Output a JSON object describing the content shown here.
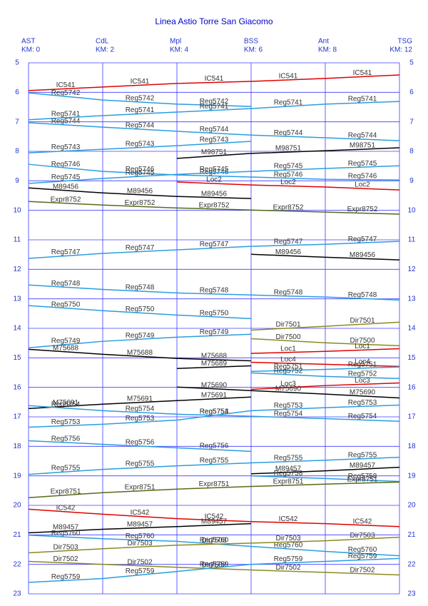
{
  "chart_data": {
    "type": "line",
    "title": "Linea Astio Torre San Giacomo",
    "categories": [
      "AST",
      "CdL",
      "Mpl",
      "BSS",
      "Ant",
      "TSG"
    ],
    "category_sublabels": [
      "KM: 0",
      "KM: 2",
      "KM: 4",
      "KM: 6",
      "KM: 8",
      "KM: 12"
    ],
    "ylim": [
      5,
      23
    ],
    "yticks": [
      5,
      6,
      7,
      8,
      9,
      10,
      11,
      12,
      13,
      14,
      15,
      16,
      17,
      18,
      19,
      20,
      21,
      22,
      23
    ],
    "y_inverted": true,
    "grid": true,
    "grid_color": "#3b3bff",
    "series": [
      {
        "name": "IC541",
        "color": "#e00000",
        "values": [
          5.94,
          5.82,
          5.7,
          5.63,
          5.53,
          5.41
        ]
      },
      {
        "name": "Reg5742",
        "color": "#2a9de0",
        "values": [
          6.02,
          6.26,
          6.4,
          6.48,
          null,
          null
        ]
      },
      {
        "name": "Reg5741",
        "color": "#2a9de0",
        "values": [
          6.93,
          6.79,
          6.67,
          6.55,
          6.4,
          6.31
        ]
      },
      {
        "name": "Reg5744",
        "color": "#2a9de0",
        "values": [
          7.03,
          7.18,
          7.32,
          7.45,
          7.54,
          7.64
        ]
      },
      {
        "name": "Reg5743",
        "color": "#2a9de0",
        "values": [
          8.05,
          7.93,
          7.81,
          7.66,
          null,
          null
        ]
      },
      {
        "name": "M98751",
        "color": "#000000",
        "values": [
          null,
          null,
          8.24,
          8.07,
          7.98,
          7.88
        ]
      },
      {
        "name": "Reg5746",
        "color": "#2a9de0",
        "values": [
          8.44,
          8.68,
          8.8,
          8.87,
          8.95,
          8.97
        ]
      },
      {
        "name": "Reg5745",
        "color": "#2a9de0",
        "values": [
          9.09,
          8.92,
          8.78,
          8.68,
          8.58,
          8.49
        ]
      },
      {
        "name": "Loc2",
        "color": "#e00000",
        "values": [
          null,
          null,
          9.04,
          9.14,
          9.21,
          9.31
        ]
      },
      {
        "name": "M89456",
        "color": "#000000",
        "values": [
          9.24,
          9.41,
          9.53,
          9.6,
          null,
          null
        ]
      },
      {
        "name": "Expr8752",
        "color": "#556b1a",
        "values": [
          9.7,
          9.82,
          9.92,
          9.99,
          10.06,
          10.13
        ]
      },
      {
        "name": "Reg5747",
        "color": "#2a9de0",
        "values": [
          11.63,
          11.46,
          11.34,
          11.22,
          11.15,
          11.05
        ]
      },
      {
        "name": "M89456",
        "color": "#000000",
        "values": [
          null,
          null,
          null,
          11.49,
          11.59,
          11.68
        ]
      },
      {
        "name": "Reg5748",
        "color": "#2a9de0",
        "values": [
          12.53,
          12.68,
          12.8,
          12.87,
          12.94,
          13.04
        ]
      },
      {
        "name": "Reg5750",
        "color": "#2a9de0",
        "values": [
          13.23,
          13.4,
          13.55,
          13.67,
          null,
          null
        ]
      },
      {
        "name": "Dir7501",
        "color": "#8a8a20",
        "values": [
          null,
          null,
          null,
          14.06,
          13.93,
          13.79
        ]
      },
      {
        "name": "Reg5749",
        "color": "#2a9de0",
        "values": [
          14.66,
          14.44,
          14.3,
          14.2,
          null,
          null
        ]
      },
      {
        "name": "Dir7500",
        "color": "#8a8a20",
        "values": [
          null,
          null,
          null,
          14.35,
          14.49,
          14.59
        ]
      },
      {
        "name": "M75688",
        "color": "#000000",
        "values": [
          14.71,
          14.88,
          15.02,
          15.1,
          null,
          null
        ]
      },
      {
        "name": "Loc1",
        "color": "#e00000",
        "values": [
          null,
          null,
          null,
          14.85,
          14.78,
          14.69
        ]
      },
      {
        "name": "M75689",
        "color": "#000000",
        "values": [
          null,
          null,
          15.36,
          15.27,
          null,
          null
        ]
      },
      {
        "name": "Loc4",
        "color": "#e00000",
        "values": [
          null,
          null,
          null,
          15.15,
          15.22,
          15.29
        ]
      },
      {
        "name": "Reg5751",
        "color": "#2a9de0",
        "values": [
          null,
          null,
          null,
          15.46,
          15.39,
          15.31
        ]
      },
      {
        "name": "Reg5752",
        "color": "#2a9de0",
        "values": [
          null,
          null,
          null,
          15.51,
          15.63,
          15.7
        ]
      },
      {
        "name": "Loc3",
        "color": "#e00000",
        "values": [
          null,
          null,
          null,
          16.07,
          15.94,
          15.85
        ]
      },
      {
        "name": "M75690",
        "color": "#000000",
        "values": [
          null,
          null,
          15.99,
          16.11,
          16.23,
          16.36
        ]
      },
      {
        "name": "M75691",
        "color": "#000000",
        "values": [
          16.72,
          16.57,
          16.45,
          16.33,
          null,
          null
        ]
      },
      {
        "name": "Reg5754",
        "color": "#2a9de0",
        "values": [
          16.62,
          16.79,
          16.91,
          16.98,
          17.06,
          17.15
        ]
      },
      {
        "name": "Reg5753",
        "color": "#2a9de0",
        "values": [
          17.35,
          17.25,
          17.11,
          16.79,
          16.69,
          16.6
        ]
      },
      {
        "name": "Reg5756",
        "color": "#2a9de0",
        "values": [
          17.81,
          17.93,
          18.05,
          18.17,
          null,
          null
        ]
      },
      {
        "name": "Reg5755",
        "color": "#2a9de0",
        "values": [
          18.95,
          18.78,
          18.66,
          18.56,
          18.47,
          18.37
        ]
      },
      {
        "name": "M89457",
        "color": "#000000",
        "values": [
          null,
          null,
          null,
          18.93,
          18.83,
          18.71
        ]
      },
      {
        "name": "Reg5758",
        "color": "#2a9de0",
        "values": [
          null,
          null,
          null,
          19.0,
          19.09,
          19.19
        ]
      },
      {
        "name": "Expr8751",
        "color": "#556b1a",
        "values": [
          19.74,
          19.57,
          19.45,
          19.36,
          19.28,
          19.21
        ]
      },
      {
        "name": "IC542",
        "color": "#e00000",
        "values": [
          20.13,
          20.3,
          20.45,
          20.55,
          20.62,
          20.72
        ]
      },
      {
        "name": "M89457",
        "color": "#000000",
        "values": [
          20.93,
          20.81,
          20.72,
          20.62,
          null,
          null
        ]
      },
      {
        "name": "Reg5760",
        "color": "#2a9de0",
        "values": [
          21.01,
          21.13,
          21.22,
          21.39,
          21.56,
          21.71
        ]
      },
      {
        "name": "Dir7503",
        "color": "#8a8a20",
        "values": [
          21.61,
          21.47,
          21.35,
          21.28,
          21.2,
          21.08
        ]
      },
      {
        "name": "Dir7502",
        "color": "#8a8a20",
        "values": [
          21.9,
          22.0,
          22.1,
          22.19,
          22.27,
          22.36
        ]
      },
      {
        "name": "Reg5759",
        "color": "#2a9de0",
        "values": [
          22.61,
          22.48,
          22.24,
          22.0,
          21.9,
          21.8
        ]
      }
    ]
  }
}
